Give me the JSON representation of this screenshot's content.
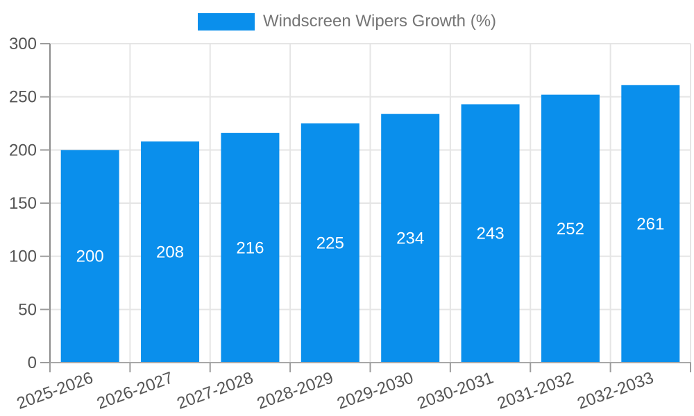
{
  "chart_data": {
    "type": "bar",
    "title": "",
    "legend": "Windscreen Wipers Growth (%)",
    "legend_position": "top-center",
    "categories": [
      "2025-2026",
      "2026-2027",
      "2027-2028",
      "2028-2029",
      "2029-2030",
      "2030-2031",
      "2031-2032",
      "2032-2033"
    ],
    "values": [
      200,
      208,
      216,
      225,
      234,
      243,
      252,
      261
    ],
    "xlabel": "",
    "ylabel": "",
    "ylim": [
      0,
      300
    ],
    "ytick_step": 50,
    "yticks": [
      0,
      50,
      100,
      150,
      200,
      250,
      300
    ],
    "grid": true,
    "value_label_position": "inside-center",
    "x_label_rotation_deg": -20,
    "colors": {
      "bar": "#0A8FEC",
      "grid": "#E5E5E5",
      "y_axis_line": "#8C8C8C",
      "x_axis_line": "#A8A8A8",
      "tick": "#9C9C9C",
      "axis_label_text": "#555555",
      "legend_text": "#757575",
      "value_label_text": "#FFFFFF",
      "background": "#FFFFFF"
    }
  }
}
